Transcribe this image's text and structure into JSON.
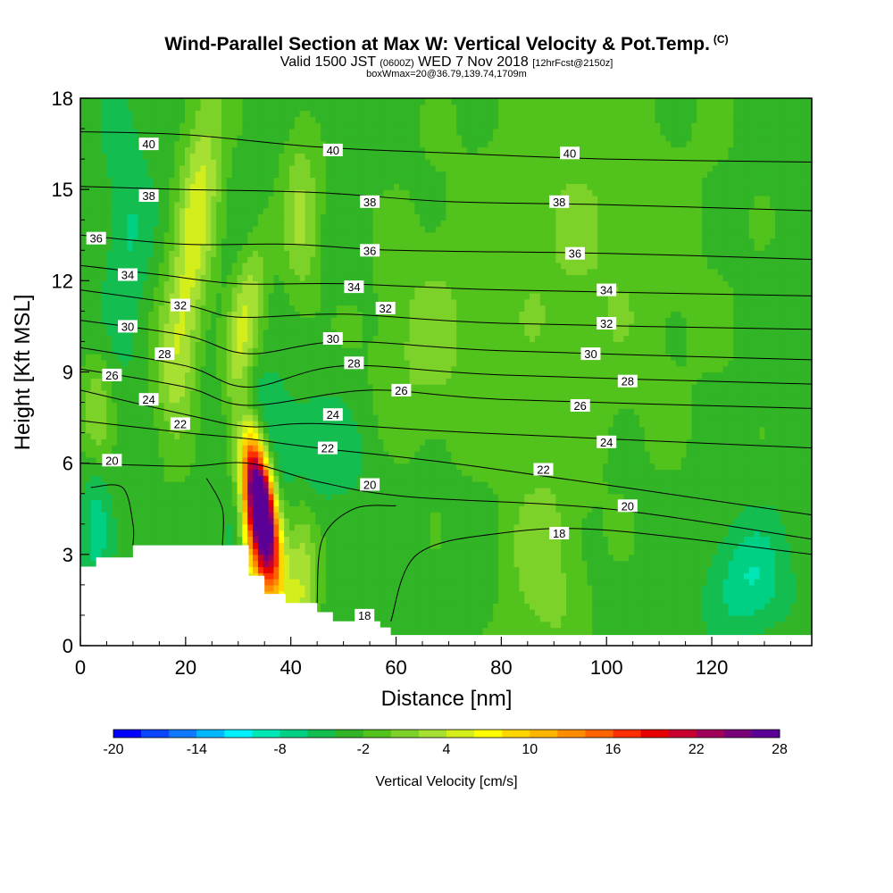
{
  "chart_data": {
    "type": "heatmap",
    "title": "Wind-Parallel Section at Max W: Vertical Velocity & Pot.Temp.",
    "title_mark": "(C)",
    "subtitle_main": "Valid 1500 JST",
    "subtitle_utc": "(0600Z)",
    "subtitle_date": "WED 7 Nov 2018",
    "subtitle_fcst": "[12hrFcst@2150z]",
    "subtitle2": "boxWmax=20@36.79,139.74,1709m",
    "xlabel": "Distance [nm]",
    "ylabel": "Height [Kft MSL]",
    "xlim": [
      0,
      139
    ],
    "ylim": [
      0,
      18
    ],
    "x_ticks": [
      0,
      20,
      40,
      60,
      80,
      100,
      120
    ],
    "y_ticks": [
      0,
      3,
      6,
      9,
      12,
      15,
      18
    ],
    "colorbar": {
      "label": "Vertical Velocity [cm/s]",
      "min": -20,
      "max": 28,
      "step": 2,
      "tick_labels": [
        "-20",
        "-14",
        "-8",
        "-2",
        "4",
        "10",
        "16",
        "22",
        "28"
      ],
      "colors": [
        "#0000ff",
        "#0a46ff",
        "#0f7aff",
        "#00b8ff",
        "#00f0ff",
        "#00e6b4",
        "#00d084",
        "#14bd50",
        "#31b526",
        "#52c21c",
        "#7dd22a",
        "#a6e033",
        "#d3ee1b",
        "#ffff00",
        "#ffd600",
        "#ffb400",
        "#ff8c00",
        "#ff6400",
        "#ff3000",
        "#e60000",
        "#c80030",
        "#a0005a",
        "#780078",
        "#5a0096"
      ]
    },
    "background_value": -3,
    "w_features": [
      {
        "x": 34.5,
        "y": 4.6,
        "value": 28,
        "sx": 1.8,
        "sy": 1.6,
        "tilt": -0.28
      },
      {
        "x": 33.5,
        "y": 3.6,
        "value": 10,
        "sx": 2.6,
        "sy": 2.6,
        "tilt": -0.25
      },
      {
        "x": 29.5,
        "y": 4.0,
        "value": -8,
        "sx": 1.4,
        "sy": 1.3,
        "tilt": 0
      },
      {
        "x": 42,
        "y": 6.4,
        "value": -6,
        "sx": 9,
        "sy": 1.3,
        "tilt": -0.15
      },
      {
        "x": 30,
        "y": 7.8,
        "value": -6,
        "sx": 5,
        "sy": 1.2,
        "tilt": 0
      },
      {
        "x": 22,
        "y": 14.0,
        "value": 5,
        "sx": 2.8,
        "sy": 3.5,
        "tilt": 0.2
      },
      {
        "x": 31,
        "y": 10.5,
        "value": 4,
        "sx": 2.2,
        "sy": 2.0,
        "tilt": 0.3
      },
      {
        "x": 42,
        "y": 14.2,
        "value": 2,
        "sx": 2.5,
        "sy": 2.2,
        "tilt": 0
      },
      {
        "x": 42,
        "y": 2.2,
        "value": 4,
        "sx": 2.2,
        "sy": 1.8,
        "tilt": 0
      },
      {
        "x": 95,
        "y": 13.0,
        "value": 0,
        "sx": 18,
        "sy": 5,
        "tilt": 0
      },
      {
        "x": 65,
        "y": 9.8,
        "value": 0,
        "sx": 7,
        "sy": 2.5,
        "tilt": 0
      },
      {
        "x": 127,
        "y": 2.2,
        "value": -8,
        "sx": 5,
        "sy": 1.3,
        "tilt": 0
      },
      {
        "x": 3,
        "y": 4.5,
        "value": -7,
        "sx": 1.8,
        "sy": 1.8,
        "tilt": 0
      },
      {
        "x": 9,
        "y": 13.5,
        "value": -6,
        "sx": 3,
        "sy": 3,
        "tilt": 0
      },
      {
        "x": 18,
        "y": 9.0,
        "value": 1,
        "sx": 3,
        "sy": 2,
        "tilt": 0
      },
      {
        "x": 3,
        "y": 7.5,
        "value": 2,
        "sx": 2,
        "sy": 1.5,
        "tilt": 0
      },
      {
        "x": 88,
        "y": 2.5,
        "value": 1,
        "sx": 5,
        "sy": 2.5,
        "tilt": 0
      }
    ],
    "terrain": [
      [
        0,
        2.6
      ],
      [
        3,
        2.6
      ],
      [
        3,
        2.9
      ],
      [
        10,
        2.9
      ],
      [
        10,
        3.3
      ],
      [
        32,
        3.3
      ],
      [
        32,
        2.3
      ],
      [
        35,
        2.3
      ],
      [
        35,
        1.7
      ],
      [
        39,
        1.7
      ],
      [
        39,
        1.4
      ],
      [
        45,
        1.4
      ],
      [
        45,
        1.1
      ],
      [
        48,
        1.1
      ],
      [
        48,
        0.8
      ],
      [
        57,
        0.8
      ],
      [
        57,
        0.6
      ],
      [
        59,
        0.6
      ],
      [
        59,
        0.35
      ],
      [
        139,
        0.35
      ]
    ],
    "theta_contours": [
      {
        "value": 40,
        "points": [
          [
            0,
            16.9
          ],
          [
            20,
            16.8
          ],
          [
            45,
            16.4
          ],
          [
            70,
            16.2
          ],
          [
            100,
            16.0
          ],
          [
            139,
            15.9
          ]
        ],
        "labels": [
          [
            13,
            16.5
          ],
          [
            48,
            16.3
          ],
          [
            93,
            16.2
          ]
        ]
      },
      {
        "value": 38,
        "points": [
          [
            0,
            15.1
          ],
          [
            20,
            15.0
          ],
          [
            45,
            14.9
          ],
          [
            70,
            14.6
          ],
          [
            100,
            14.5
          ],
          [
            139,
            14.3
          ]
        ],
        "labels": [
          [
            13,
            14.8
          ],
          [
            55,
            14.6
          ],
          [
            91,
            14.6
          ]
        ]
      },
      {
        "value": 36,
        "points": [
          [
            0,
            13.5
          ],
          [
            20,
            13.2
          ],
          [
            40,
            13.2
          ],
          [
            60,
            13.0
          ],
          [
            100,
            12.9
          ],
          [
            139,
            12.7
          ]
        ],
        "labels": [
          [
            3,
            13.4
          ],
          [
            55,
            13.0
          ],
          [
            94,
            12.9
          ]
        ]
      },
      {
        "value": 34,
        "points": [
          [
            0,
            12.5
          ],
          [
            15,
            12.2
          ],
          [
            30,
            11.9
          ],
          [
            50,
            11.9
          ],
          [
            80,
            11.7
          ],
          [
            139,
            11.5
          ]
        ],
        "labels": [
          [
            9,
            12.2
          ],
          [
            52,
            11.8
          ],
          [
            100,
            11.7
          ]
        ]
      },
      {
        "value": 32,
        "points": [
          [
            0,
            11.7
          ],
          [
            20,
            11.2
          ],
          [
            30,
            10.8
          ],
          [
            50,
            10.9
          ],
          [
            80,
            10.6
          ],
          [
            139,
            10.4
          ]
        ],
        "labels": [
          [
            19,
            11.2
          ],
          [
            58,
            11.1
          ],
          [
            100,
            10.6
          ]
        ]
      },
      {
        "value": 30,
        "points": [
          [
            0,
            10.7
          ],
          [
            20,
            10.2
          ],
          [
            32,
            9.6
          ],
          [
            50,
            10.0
          ],
          [
            80,
            9.7
          ],
          [
            139,
            9.4
          ]
        ],
        "labels": [
          [
            9,
            10.5
          ],
          [
            48,
            10.1
          ],
          [
            97,
            9.6
          ]
        ]
      },
      {
        "value": 28,
        "points": [
          [
            0,
            9.8
          ],
          [
            20,
            9.2
          ],
          [
            32,
            8.5
          ],
          [
            50,
            9.2
          ],
          [
            80,
            8.9
          ],
          [
            139,
            8.6
          ]
        ],
        "labels": [
          [
            16,
            9.6
          ],
          [
            52,
            9.3
          ],
          [
            104,
            8.7
          ]
        ]
      },
      {
        "value": 26,
        "points": [
          [
            0,
            9.1
          ],
          [
            20,
            8.5
          ],
          [
            32,
            7.9
          ],
          [
            55,
            8.4
          ],
          [
            80,
            8.1
          ],
          [
            139,
            7.8
          ]
        ],
        "labels": [
          [
            6,
            8.9
          ],
          [
            61,
            8.4
          ],
          [
            95,
            7.9
          ]
        ]
      },
      {
        "value": 24,
        "points": [
          [
            0,
            8.4
          ],
          [
            20,
            7.6
          ],
          [
            32,
            7.2
          ],
          [
            45,
            7.3
          ],
          [
            75,
            7.0
          ],
          [
            139,
            6.5
          ]
        ],
        "labels": [
          [
            13,
            8.1
          ],
          [
            48,
            7.6
          ],
          [
            100,
            6.7
          ]
        ]
      },
      {
        "value": 22,
        "points": [
          [
            0,
            7.4
          ],
          [
            20,
            7.0
          ],
          [
            32,
            6.8
          ],
          [
            45,
            6.5
          ],
          [
            75,
            5.9
          ],
          [
            139,
            4.3
          ]
        ],
        "labels": [
          [
            19,
            7.3
          ],
          [
            47,
            6.5
          ],
          [
            88,
            5.8
          ]
        ]
      },
      {
        "value": 20,
        "points": [
          [
            0,
            6.0
          ],
          [
            20,
            5.9
          ],
          [
            32,
            6.0
          ],
          [
            45,
            5.4
          ],
          [
            62,
            4.9
          ],
          [
            100,
            4.5
          ],
          [
            139,
            3.5
          ]
        ],
        "labels": [
          [
            6,
            6.1
          ],
          [
            55,
            5.3
          ],
          [
            104,
            4.6
          ]
        ]
      },
      {
        "value": 18,
        "points": [
          [
            59,
            0.8
          ],
          [
            64,
            3.0
          ],
          [
            80,
            3.7
          ],
          [
            100,
            3.8
          ],
          [
            139,
            3.0
          ]
        ],
        "labels": [
          [
            91,
            3.7
          ],
          [
            54,
            1.0
          ]
        ]
      },
      {
        "value": 19,
        "points": [
          [
            2,
            5.2
          ],
          [
            8,
            5.2
          ],
          [
            10,
            4.0
          ],
          [
            10,
            3.3
          ]
        ],
        "labels": []
      },
      {
        "value": 19,
        "points": [
          [
            24,
            5.5
          ],
          [
            27,
            4.5
          ],
          [
            27,
            3.3
          ]
        ],
        "labels": []
      },
      {
        "value": 19,
        "points": [
          [
            45,
            1.4
          ],
          [
            46,
            3.5
          ],
          [
            52,
            4.5
          ],
          [
            60,
            4.6
          ]
        ],
        "labels": []
      }
    ]
  }
}
